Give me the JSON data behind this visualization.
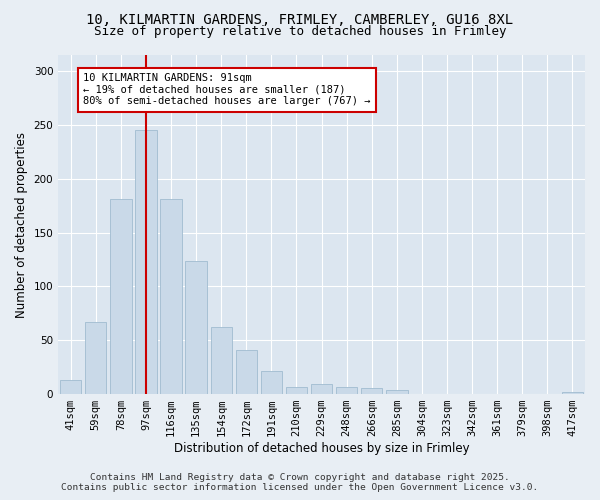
{
  "title_line1": "10, KILMARTIN GARDENS, FRIMLEY, CAMBERLEY, GU16 8XL",
  "title_line2": "Size of property relative to detached houses in Frimley",
  "xlabel": "Distribution of detached houses by size in Frimley",
  "ylabel": "Number of detached properties",
  "categories": [
    "41sqm",
    "59sqm",
    "78sqm",
    "97sqm",
    "116sqm",
    "135sqm",
    "154sqm",
    "172sqm",
    "191sqm",
    "210sqm",
    "229sqm",
    "248sqm",
    "266sqm",
    "285sqm",
    "304sqm",
    "323sqm",
    "342sqm",
    "361sqm",
    "379sqm",
    "398sqm",
    "417sqm"
  ],
  "values": [
    13,
    67,
    181,
    245,
    181,
    124,
    62,
    41,
    21,
    7,
    9,
    7,
    6,
    4,
    0,
    0,
    0,
    0,
    0,
    0,
    2
  ],
  "bar_color": "#c9d9e8",
  "bar_edge_color": "#a0bcd0",
  "vline_x": 3,
  "vline_color": "#cc0000",
  "annotation_text": "10 KILMARTIN GARDENS: 91sqm\n← 19% of detached houses are smaller (187)\n80% of semi-detached houses are larger (767) →",
  "annotation_box_facecolor": "#ffffff",
  "annotation_box_edgecolor": "#cc0000",
  "ylim": [
    0,
    315
  ],
  "yticks": [
    0,
    50,
    100,
    150,
    200,
    250,
    300
  ],
  "background_color": "#e8eef4",
  "plot_background_color": "#dce6f0",
  "grid_color": "#ffffff",
  "footer_line1": "Contains HM Land Registry data © Crown copyright and database right 2025.",
  "footer_line2": "Contains public sector information licensed under the Open Government Licence v3.0.",
  "title_fontsize": 10,
  "subtitle_fontsize": 9,
  "label_fontsize": 8.5,
  "tick_fontsize": 7.5,
  "annotation_fontsize": 7.5,
  "footer_fontsize": 6.8
}
